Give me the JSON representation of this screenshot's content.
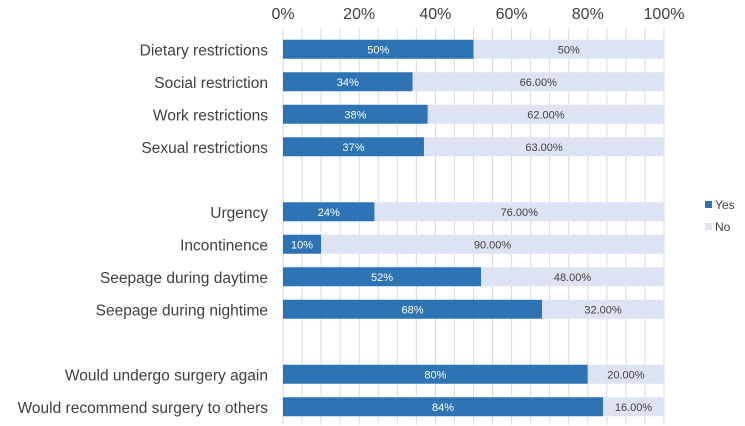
{
  "chart_data": {
    "type": "bar",
    "orientation": "horizontal",
    "stacked": true,
    "xlim": [
      0,
      100
    ],
    "x_ticks": [
      "0%",
      "20%",
      "40%",
      "60%",
      "80%",
      "100%"
    ],
    "grid": true,
    "legend_position": "right",
    "colors": {
      "Yes": "#2e74b5",
      "No": "#dde3f2",
      "grid": "#d9d9d9"
    },
    "categories": [
      "Dietary restrictions",
      "Social restriction",
      "Work restrictions",
      "Sexual restrictions",
      "",
      "Urgency",
      "Incontinence",
      "Seepage during daytime",
      "Seepage during nightime",
      "",
      "Would undergo surgery again",
      "Would recommend surgery to others"
    ],
    "series": [
      {
        "name": "Yes",
        "values": [
          50,
          34,
          38,
          37,
          null,
          24,
          10,
          52,
          68,
          null,
          80,
          84
        ],
        "labels": [
          "50%",
          "34%",
          "38%",
          "37%",
          "",
          "24%",
          "10%",
          "52%",
          "68%",
          "",
          "80%",
          "84%"
        ]
      },
      {
        "name": "No",
        "values": [
          50,
          66,
          62,
          63,
          null,
          76,
          90,
          48,
          32,
          null,
          20,
          16
        ],
        "labels": [
          "50%",
          "66.00%",
          "62.00%",
          "63.00%",
          "",
          "76.00%",
          "90.00%",
          "48.00%",
          "32.00%",
          "",
          "20.00%",
          "16.00%"
        ]
      }
    ]
  }
}
